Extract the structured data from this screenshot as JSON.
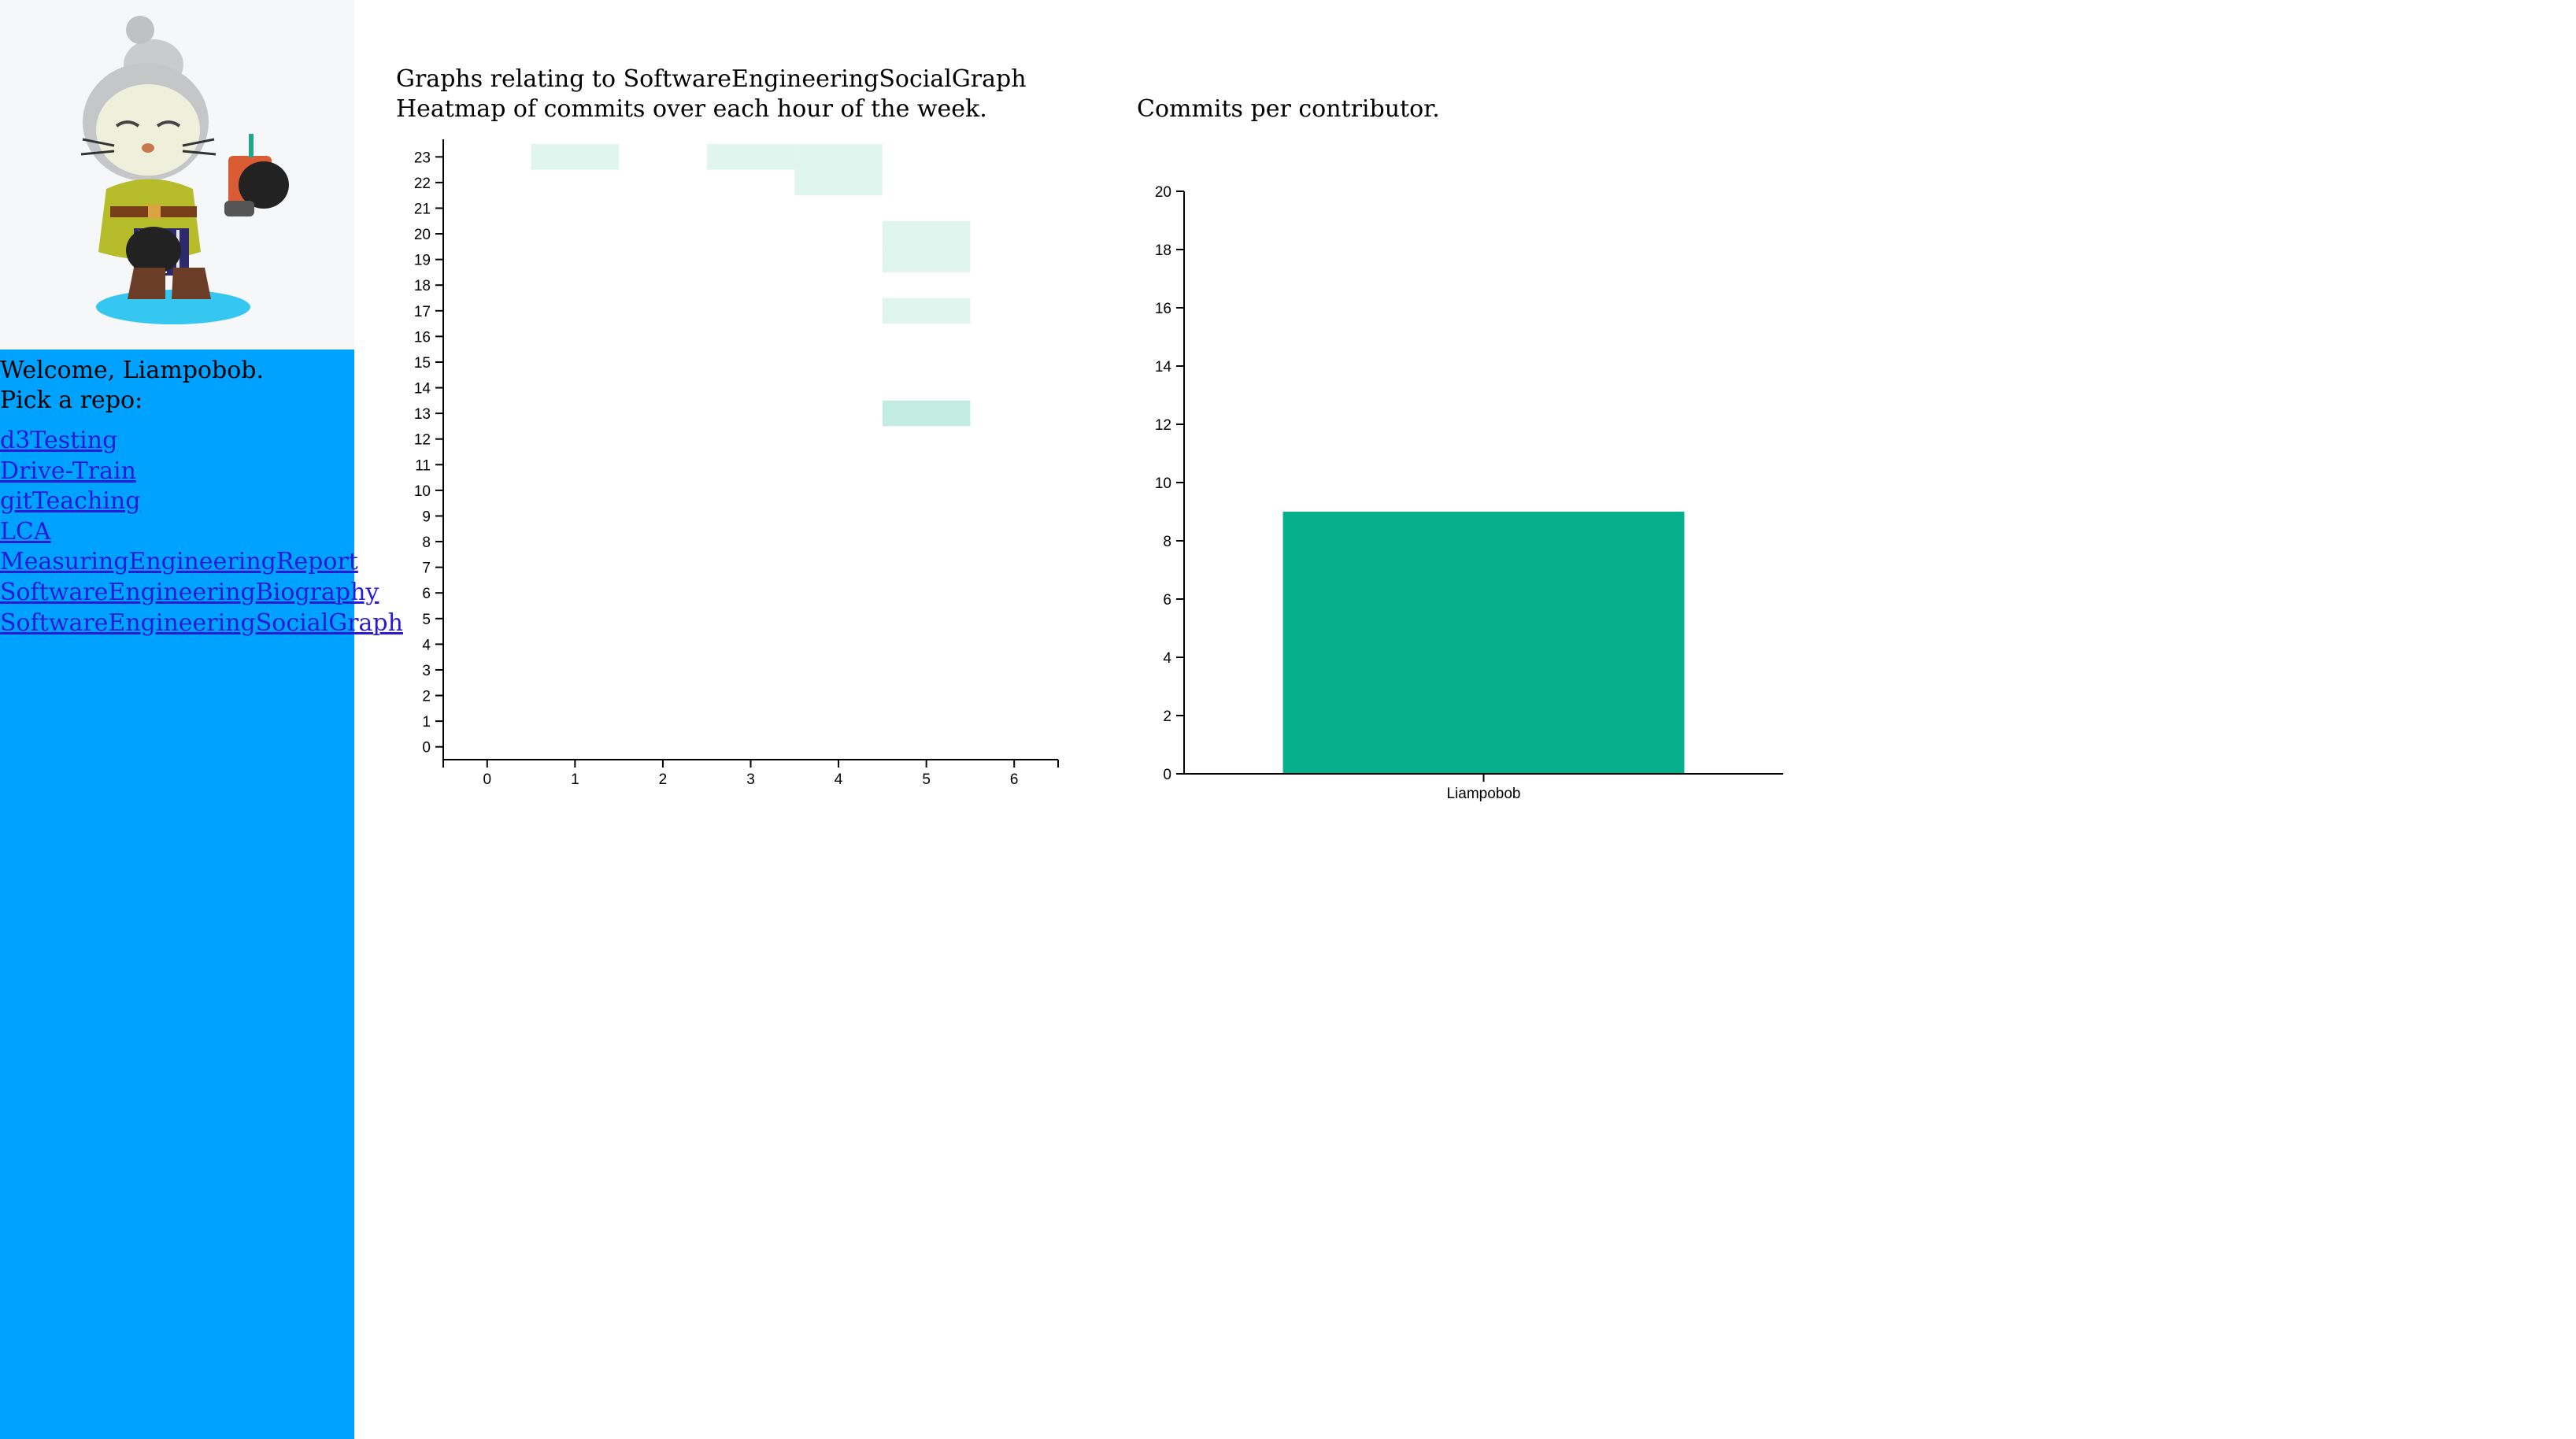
{
  "sidebar": {
    "avatar_icon": "octocat-avatar",
    "welcome": "Welcome, Liampobob.",
    "pick_prompt": "Pick a repo:",
    "repos": [
      "d3Testing",
      "Drive-Train",
      "gitTeaching",
      "LCA",
      "MeasuringEngineeringReport",
      "SoftwareEngineeringBiography",
      "SoftwareEngineeringSocialGraph"
    ],
    "background_color": "#00a2ff",
    "link_color": "#2a1ad6"
  },
  "main": {
    "page_title": "Graphs relating to SoftwareEngineeringSocialGraph",
    "heatmap_title": "Heatmap of commits over each hour of the week.",
    "bar_title": "Commits per contributor."
  },
  "chart_data": [
    {
      "type": "heatmap",
      "x_ticks": [
        "0",
        "1",
        "2",
        "3",
        "4",
        "5",
        "6"
      ],
      "y_ticks": [
        "0",
        "1",
        "2",
        "3",
        "4",
        "5",
        "6",
        "7",
        "8",
        "9",
        "10",
        "11",
        "12",
        "13",
        "14",
        "15",
        "16",
        "17",
        "18",
        "19",
        "20",
        "21",
        "22",
        "23"
      ],
      "xlim": [
        -0.5,
        6.5
      ],
      "ylim": [
        -0.5,
        23.5
      ],
      "cells": [
        {
          "day": 1,
          "hour": 23,
          "count": 1
        },
        {
          "day": 3,
          "hour": 23,
          "count": 1
        },
        {
          "day": 4,
          "hour": 23,
          "count": 1
        },
        {
          "day": 4,
          "hour": 22,
          "count": 1
        },
        {
          "day": 5,
          "hour": 20,
          "count": 1
        },
        {
          "day": 5,
          "hour": 19,
          "count": 1
        },
        {
          "day": 5,
          "hour": 17,
          "count": 1
        },
        {
          "day": 5,
          "hour": 13,
          "count": 2
        }
      ],
      "colors": {
        "low": "#dff5ee",
        "high": "#c2ebe1"
      }
    },
    {
      "type": "bar",
      "categories": [
        "Liampobob"
      ],
      "values": [
        9
      ],
      "ylim": [
        0,
        20
      ],
      "y_ticks": [
        0,
        2,
        4,
        6,
        8,
        10,
        12,
        14,
        16,
        18,
        20
      ],
      "bar_color": "#07b08c"
    }
  ]
}
